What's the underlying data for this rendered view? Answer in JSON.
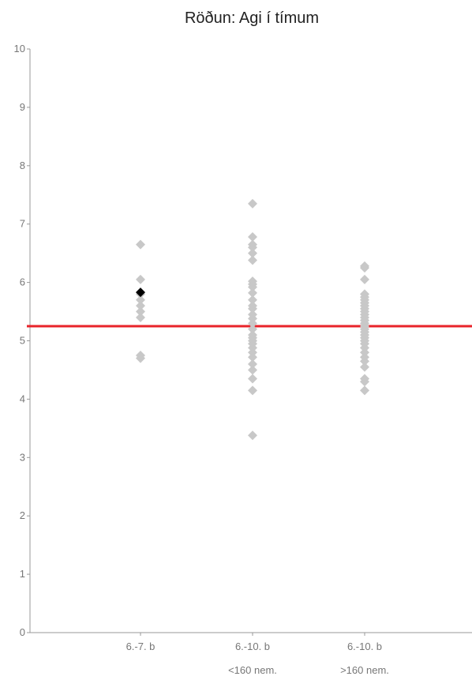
{
  "chart_data": {
    "type": "scatter",
    "title": "Röðun: Agi í tímum",
    "xlabel": "",
    "ylabel": "",
    "ylim": [
      0,
      10
    ],
    "yticks": [
      0,
      1,
      2,
      3,
      4,
      5,
      6,
      7,
      8,
      9,
      10
    ],
    "categories": [
      {
        "label_lines": [
          "6.-7. b",
          ""
        ]
      },
      {
        "label_lines": [
          "6.-10. b",
          "<160 nem."
        ]
      },
      {
        "label_lines": [
          "6.-10. b",
          ">160 nem."
        ]
      }
    ],
    "reference_line": {
      "y": 5.25,
      "color": "#e8232a"
    },
    "highlight": {
      "category_index": 0,
      "y": 5.83,
      "color": "#000000"
    },
    "point_color": "#c8c8c8",
    "series": [
      {
        "category_index": 0,
        "values": [
          6.65,
          6.05,
          5.8,
          5.7,
          5.6,
          5.5,
          5.4,
          4.75,
          4.7
        ]
      },
      {
        "category_index": 1,
        "values": [
          7.35,
          6.78,
          6.65,
          6.6,
          6.5,
          6.38,
          6.02,
          5.97,
          5.92,
          5.82,
          5.7,
          5.6,
          5.55,
          5.45,
          5.38,
          5.3,
          5.2,
          5.1,
          5.05,
          5.0,
          4.95,
          4.88,
          4.8,
          4.72,
          4.6,
          4.5,
          4.35,
          4.15,
          3.38
        ]
      },
      {
        "category_index": 2,
        "values": [
          6.28,
          6.25,
          6.05,
          5.8,
          5.75,
          5.7,
          5.65,
          5.6,
          5.55,
          5.5,
          5.45,
          5.4,
          5.35,
          5.3,
          5.25,
          5.2,
          5.15,
          5.1,
          5.05,
          5.0,
          4.95,
          4.88,
          4.8,
          4.72,
          4.65,
          4.55,
          4.35,
          4.3,
          4.15
        ]
      }
    ]
  }
}
